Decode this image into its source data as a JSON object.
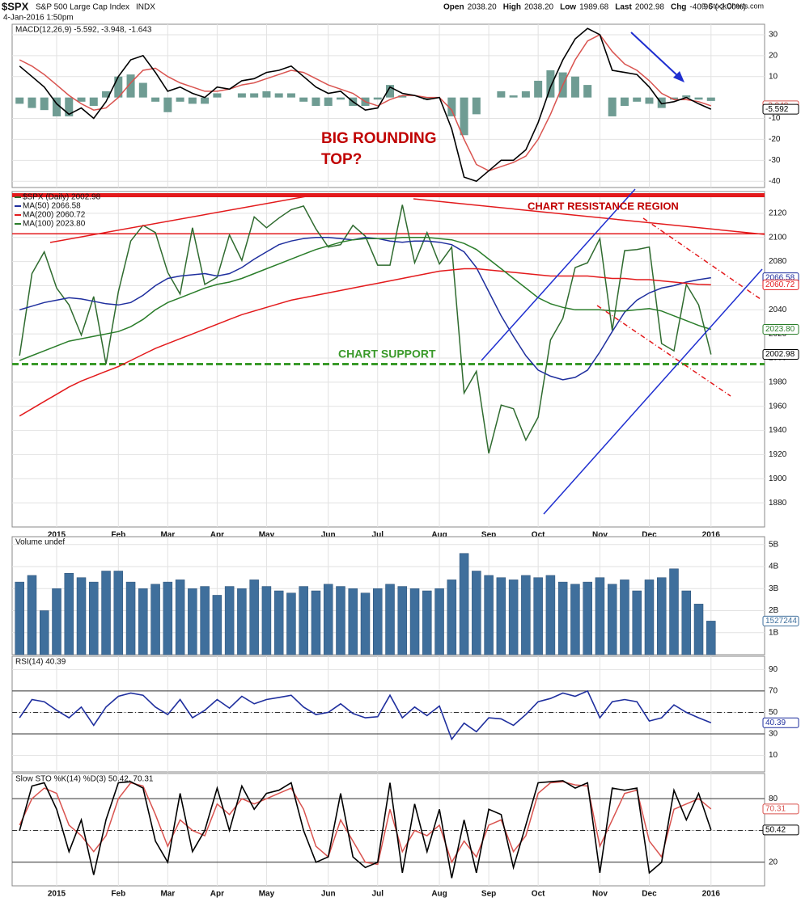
{
  "header": {
    "symbol": "$SPX",
    "name": "S&P 500 Large Cap Index",
    "exchange": "INDX",
    "date": "4-Jan-2016 1:50pm",
    "quote": [
      [
        "Open",
        "2038.20"
      ],
      [
        "High",
        "2038.20"
      ],
      [
        "Low",
        "1989.68"
      ],
      [
        "Last",
        "2002.98"
      ],
      [
        "Chg",
        "-40.96 (-2.00%)"
      ]
    ],
    "copyright": "© StockCharts.com"
  },
  "annotations": {
    "rounding_top": [
      "BIG ROUNDING",
      "TOP?"
    ],
    "resistance": "CHART RESISTANCE REGION",
    "support": "CHART SUPPORT"
  },
  "chart_data": [
    {
      "type": "line",
      "title": "MACD(12,26,9) -5.592, -3.948, -1.643",
      "ylim": [
        -43,
        35
      ],
      "yticks": [
        -40,
        -30,
        -20,
        -10,
        10,
        20,
        30
      ],
      "series": [
        {
          "type": "bar",
          "color": "#6f9c93",
          "values": [
            -3,
            -5,
            -6,
            -9,
            -9,
            -2,
            -4,
            3,
            10,
            11,
            7,
            -2,
            -7,
            -2,
            -3,
            -3,
            2,
            0,
            2,
            2,
            3,
            2,
            2,
            -2,
            -4,
            -4,
            -1,
            -4,
            -4,
            -1,
            6,
            1,
            0,
            -1,
            0,
            -9,
            -18,
            -8,
            0,
            3,
            1,
            3,
            8,
            13,
            12,
            10,
            6,
            0,
            -9,
            -4,
            -2,
            -3,
            -5,
            -1,
            1,
            -1,
            -1.643
          ]
        },
        {
          "color": "#d9534f",
          "values": [
            18,
            15,
            11,
            6,
            1,
            -3,
            -6,
            -5,
            0,
            7,
            13,
            14,
            10,
            7,
            5,
            3,
            3,
            4,
            6,
            7,
            9,
            11,
            13,
            12,
            9,
            6,
            4,
            2,
            -2,
            -4,
            -1,
            1,
            1,
            0,
            0,
            -6,
            -20,
            -32,
            -35,
            -33,
            -31,
            -28,
            -20,
            -8,
            6,
            18,
            27,
            30,
            22,
            16,
            13,
            8,
            2,
            -1,
            -1,
            -2,
            -3.948
          ]
        },
        {
          "color": "#000000",
          "values": [
            15,
            10,
            5,
            -3,
            -8,
            -5,
            -10,
            -2,
            10,
            18,
            20,
            12,
            3,
            5,
            2,
            0,
            5,
            4,
            8,
            9,
            12,
            13,
            15,
            10,
            5,
            2,
            3,
            -2,
            -6,
            -5,
            5,
            2,
            1,
            -1,
            0,
            -15,
            -38,
            -40,
            -35,
            -30,
            -30,
            -25,
            -12,
            5,
            18,
            28,
            33,
            30,
            13,
            12,
            11,
            5,
            -3,
            -2,
            0,
            -3,
            -5.592
          ]
        }
      ],
      "tags": [
        {
          "value": -3.948,
          "label": "-3.948",
          "color": "#d9534f"
        },
        {
          "value": -5.592,
          "label": "-5.592",
          "color": "#000000"
        }
      ]
    },
    {
      "type": "line",
      "ylim": [
        1860,
        2138
      ],
      "yticks": [
        1880,
        1900,
        1920,
        1940,
        1960,
        1980,
        2000,
        2020,
        2040,
        2060,
        2080,
        2100,
        2120
      ],
      "categories": [
        null,
        null,
        null,
        "2015",
        null,
        null,
        null,
        null,
        "Feb",
        null,
        null,
        null,
        "Mar",
        null,
        null,
        null,
        "Apr",
        null,
        null,
        null,
        "May",
        null,
        null,
        null,
        null,
        "Jun",
        null,
        null,
        null,
        "Jul",
        null,
        null,
        null,
        null,
        "Aug",
        null,
        null,
        null,
        "Sep",
        null,
        null,
        null,
        "Oct",
        null,
        null,
        null,
        null,
        "Nov",
        null,
        null,
        null,
        "Dec",
        null,
        null,
        null,
        null,
        "2016"
      ],
      "series": [
        {
          "name": "$SPX (Daily) 2002.98",
          "color": "#2f6b2f",
          "values": [
            2002,
            2070,
            2088,
            2058,
            2044,
            2019,
            2051,
            1995,
            2055,
            2097,
            2110,
            2104,
            2071,
            2053,
            2108,
            2061,
            2067,
            2102,
            2081,
            2117,
            2108,
            2116,
            2123,
            2126,
            2107,
            2092,
            2094,
            2110,
            2101,
            2077,
            2077,
            2127,
            2079,
            2104,
            2078,
            2092,
            1971,
            1989,
            1921,
            1961,
            1958,
            1932,
            1951,
            2015,
            2033,
            2075,
            2079,
            2099,
            2023,
            2089,
            2090,
            2092,
            2012,
            2006,
            2061,
            2044,
            2002.98
          ]
        },
        {
          "name": "MA(50) 2066.58",
          "color": "#1f2f9e",
          "values": [
            2040,
            2043,
            2046,
            2048,
            2050,
            2049,
            2047,
            2045,
            2044,
            2046,
            2052,
            2060,
            2066,
            2068,
            2069,
            2070,
            2068,
            2070,
            2075,
            2082,
            2088,
            2094,
            2097,
            2099,
            2100,
            2100,
            2099,
            2098,
            2100,
            2099,
            2097,
            2096,
            2097,
            2097,
            2096,
            2094,
            2088,
            2075,
            2055,
            2035,
            2018,
            2002,
            1990,
            1985,
            1982,
            1984,
            1990,
            2005,
            2022,
            2038,
            2048,
            2054,
            2058,
            2060,
            2063,
            2065,
            2066.58
          ]
        },
        {
          "name": "MA(200) 2060.72",
          "color": "#e31a1c",
          "values": [
            1952,
            1958,
            1964,
            1970,
            1976,
            1981,
            1985,
            1989,
            1993,
            1998,
            2003,
            2008,
            2012,
            2016,
            2020,
            2024,
            2028,
            2032,
            2036,
            2039,
            2042,
            2045,
            2048,
            2050,
            2052,
            2054,
            2056,
            2058,
            2060,
            2062,
            2064,
            2066,
            2068,
            2070,
            2072,
            2073,
            2074,
            2074,
            2073,
            2072,
            2071,
            2070,
            2069,
            2068,
            2068,
            2068,
            2068,
            2067,
            2066,
            2066,
            2065,
            2065,
            2064,
            2063,
            2062,
            2061,
            2060.72
          ]
        },
        {
          "name": "MA(100) 2023.80",
          "color": "#2a7d2a",
          "values": [
            1998,
            2002,
            2006,
            2010,
            2014,
            2016,
            2018,
            2020,
            2022,
            2026,
            2032,
            2040,
            2046,
            2050,
            2054,
            2058,
            2061,
            2063,
            2066,
            2070,
            2074,
            2078,
            2082,
            2086,
            2090,
            2093,
            2096,
            2098,
            2099,
            2099,
            2099,
            2100,
            2100,
            2100,
            2099,
            2098,
            2095,
            2090,
            2082,
            2074,
            2066,
            2058,
            2050,
            2045,
            2042,
            2040,
            2040,
            2040,
            2039,
            2039,
            2040,
            2041,
            2039,
            2035,
            2031,
            2027,
            2023.8
          ]
        }
      ],
      "hlines": [
        {
          "value": 2135,
          "color": "#e31a1c",
          "width": 5
        },
        {
          "value": 2103,
          "color": "#e31a1c",
          "width": 1.5
        },
        {
          "value": 1995,
          "color": "#3a9a2a",
          "width": 3,
          "dash": true
        }
      ],
      "tags": [
        {
          "value": 2066.58,
          "label": "2066.58",
          "color": "#1f2f9e"
        },
        {
          "value": 2060.72,
          "label": "2060.72",
          "color": "#e31a1c"
        },
        {
          "value": 2023.8,
          "label": "2023.80",
          "color": "#2a7d2a"
        },
        {
          "value": 2002.98,
          "label": "2002.98",
          "color": "#000000"
        }
      ]
    },
    {
      "type": "bar",
      "title": "Volume undef",
      "color": "#3f6f9c",
      "ylim": [
        0,
        5.36
      ],
      "yticks": [
        {
          "value": 1,
          "label": "1B"
        },
        {
          "value": 2,
          "label": "2B"
        },
        {
          "value": 3,
          "label": "3B"
        },
        {
          "value": 4,
          "label": "4B"
        },
        {
          "value": 5,
          "label": "5B"
        }
      ],
      "values": [
        3.3,
        3.6,
        2.0,
        3.0,
        3.7,
        3.5,
        3.3,
        3.8,
        3.8,
        3.3,
        3.0,
        3.2,
        3.3,
        3.4,
        3.0,
        3.1,
        2.7,
        3.1,
        3.0,
        3.4,
        3.1,
        2.9,
        2.8,
        3.1,
        2.9,
        3.2,
        3.1,
        3.0,
        2.8,
        3.0,
        3.2,
        3.1,
        3.0,
        2.9,
        3.0,
        3.4,
        4.6,
        3.8,
        3.6,
        3.5,
        3.4,
        3.6,
        3.5,
        3.6,
        3.3,
        3.2,
        3.3,
        3.5,
        3.2,
        3.4,
        2.9,
        3.4,
        3.5,
        3.9,
        2.9,
        2.3,
        1.527244
      ],
      "tags": [
        {
          "value": 1.527244,
          "label": "1527244",
          "color": "#3f6f9c"
        }
      ]
    },
    {
      "type": "line",
      "title": "RSI(14) 40.39",
      "ylim": [
        -5.4,
        102.3
      ],
      "yticks": [
        10,
        30,
        50,
        70,
        90
      ],
      "series": [
        {
          "color": "#1f2f9e",
          "values": [
            45,
            62,
            60,
            52,
            45,
            55,
            38,
            55,
            65,
            68,
            66,
            55,
            48,
            62,
            45,
            52,
            62,
            54,
            65,
            58,
            62,
            64,
            66,
            55,
            48,
            50,
            58,
            49,
            45,
            46,
            66,
            45,
            55,
            47,
            56,
            25,
            40,
            32,
            45,
            44,
            38,
            48,
            60,
            63,
            68,
            65,
            70,
            45,
            60,
            62,
            60,
            42,
            45,
            57,
            50,
            45,
            40.39
          ]
        }
      ],
      "hlines": [
        {
          "value": 70,
          "color": "#333333",
          "width": 1
        },
        {
          "value": 30,
          "color": "#333333",
          "width": 1
        },
        {
          "value": 50,
          "color": "#333333",
          "width": 1,
          "dash": true
        }
      ],
      "tags": [
        {
          "value": 40.39,
          "label": "40.39",
          "color": "#1f2f9e"
        }
      ]
    },
    {
      "type": "line",
      "title": "Slow STO %K(14) %D(3) 50.42, 70.31",
      "ylim": [
        -2.3,
        103.8
      ],
      "yticks": [
        20,
        50,
        80
      ],
      "categories": [
        null,
        null,
        null,
        "2015",
        null,
        null,
        null,
        null,
        "Feb",
        null,
        null,
        null,
        "Mar",
        null,
        null,
        null,
        "Apr",
        null,
        null,
        null,
        "May",
        null,
        null,
        null,
        null,
        "Jun",
        null,
        null,
        null,
        "Jul",
        null,
        null,
        null,
        null,
        "Aug",
        null,
        null,
        null,
        "Sep",
        null,
        null,
        null,
        "Oct",
        null,
        null,
        null,
        null,
        "Nov",
        null,
        null,
        null,
        "Dec",
        null,
        null,
        null,
        null,
        "2016"
      ],
      "series": [
        {
          "color": "#d9534f",
          "values": [
            55,
            80,
            90,
            85,
            55,
            45,
            30,
            45,
            80,
            95,
            92,
            65,
            35,
            60,
            50,
            45,
            75,
            65,
            80,
            75,
            80,
            85,
            90,
            70,
            35,
            25,
            60,
            40,
            20,
            18,
            70,
            30,
            50,
            45,
            55,
            20,
            40,
            25,
            55,
            60,
            30,
            45,
            85,
            95,
            96,
            93,
            92,
            35,
            60,
            85,
            88,
            40,
            25,
            70,
            75,
            80,
            70.31
          ]
        },
        {
          "color": "#000000",
          "values": [
            50,
            92,
            95,
            70,
            30,
            60,
            8,
            60,
            95,
            96,
            90,
            40,
            20,
            85,
            30,
            50,
            90,
            50,
            92,
            70,
            85,
            88,
            95,
            50,
            20,
            25,
            85,
            25,
            15,
            20,
            95,
            10,
            75,
            30,
            70,
            5,
            60,
            10,
            70,
            65,
            15,
            55,
            95,
            96,
            97,
            90,
            95,
            10,
            90,
            88,
            90,
            10,
            20,
            88,
            60,
            85,
            50.42
          ]
        }
      ],
      "hlines": [
        {
          "value": 80,
          "color": "#333333",
          "width": 1
        },
        {
          "value": 20,
          "color": "#333333",
          "width": 1
        },
        {
          "value": 50,
          "color": "#333333",
          "width": 1,
          "dash": true
        }
      ],
      "tags": [
        {
          "value": 70.31,
          "label": "70.31",
          "color": "#d9534f"
        },
        {
          "value": 50.42,
          "label": "50.42",
          "color": "#000000"
        }
      ]
    }
  ]
}
